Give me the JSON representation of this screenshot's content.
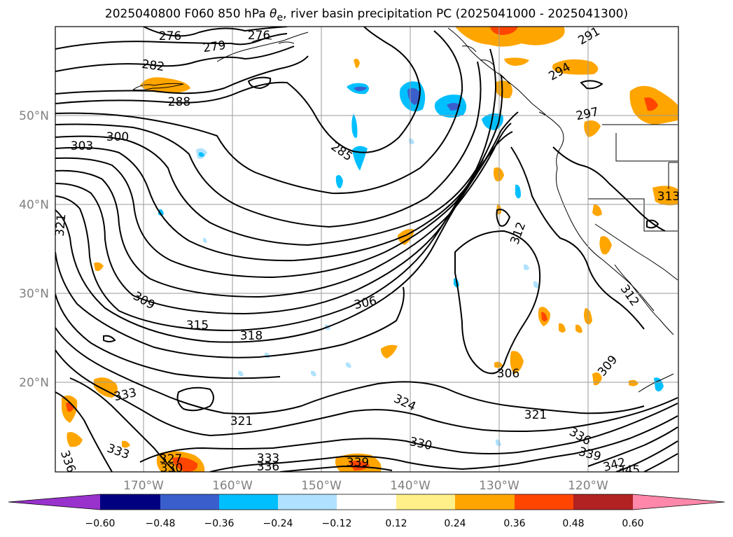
{
  "title": {
    "prefix": "2025040800 F060 850 hPa ",
    "symbol": "θ",
    "subscript": "e",
    "suffix": ", river basin precipitation PC (2025041000 - 2025041300)"
  },
  "axes": {
    "lon_labels": [
      "170°W",
      "160°W",
      "150°W",
      "140°W",
      "130°W",
      "120°W"
    ],
    "lat_labels": [
      "50°N",
      "40°N",
      "30°N",
      "20°N"
    ]
  },
  "contour_labels": [
    "276",
    "276",
    "279",
    "282",
    "288",
    "285",
    "291",
    "294",
    "297",
    "300",
    "303",
    "321",
    "312",
    "313",
    "309",
    "306",
    "315",
    "318",
    "312",
    "306",
    "309",
    "333",
    "324",
    "321",
    "321",
    "330",
    "336",
    "339",
    "342",
    "345",
    "333",
    "327",
    "330",
    "336",
    "333",
    "336",
    "339"
  ],
  "colorbar": {
    "ticks": [
      "−0.60",
      "−0.48",
      "−0.36",
      "−0.24",
      "−0.12",
      "0.12",
      "0.24",
      "0.36",
      "0.48",
      "0.60"
    ],
    "colors": {
      "under": "#9932cc",
      "bins": [
        "#000080",
        "#3a5fcd",
        "#00bfff",
        "#b0e2ff",
        "#ffffff",
        "#fff08a",
        "#ffa500",
        "#ff4500",
        "#b22222"
      ],
      "over": "#ff88aa"
    }
  }
}
